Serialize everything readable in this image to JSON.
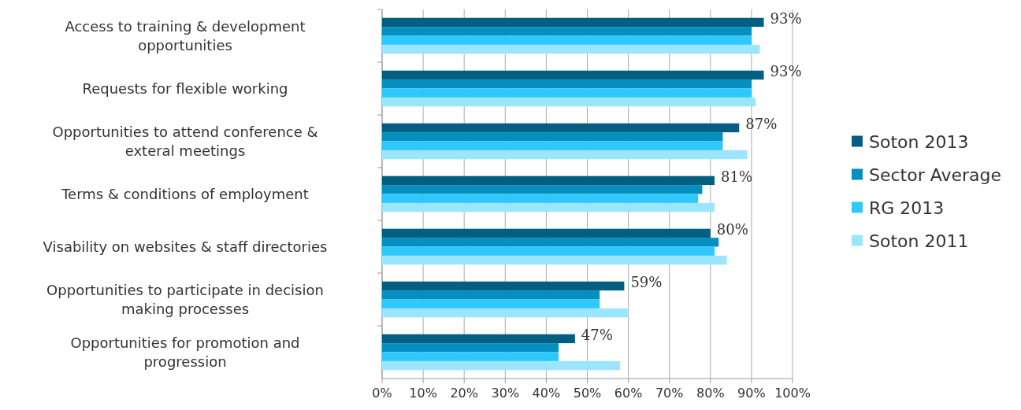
{
  "chart_data": {
    "type": "bar",
    "orientation": "horizontal",
    "categories": [
      "Access to training & development opportunities",
      "Requests for flexible working",
      "Opportunities to attend conference & exteral meetings",
      "Terms & conditions of employment",
      "Visability on websites & staff directories",
      "Opportunities to participate in decision making processes",
      "Opportunities for promotion and progression"
    ],
    "series": [
      {
        "name": "Soton 2013",
        "color": "#035f82",
        "values": [
          93,
          93,
          87,
          81,
          80,
          59,
          47
        ],
        "value_labels": [
          "93%",
          "93%",
          "87%",
          "81%",
          "80%",
          "59%",
          "47%"
        ]
      },
      {
        "name": "Sector Average",
        "color": "#058fc0",
        "values": [
          90,
          90,
          83,
          78,
          82,
          53,
          43
        ]
      },
      {
        "name": "RG 2013",
        "color": "#2fc8fd",
        "values": [
          90,
          90,
          83,
          77,
          81,
          53,
          43
        ]
      },
      {
        "name": "Soton 2011",
        "color": "#9be5fe",
        "values": [
          92,
          91,
          89,
          81,
          84,
          60,
          58
        ]
      }
    ],
    "xlim": [
      0,
      100
    ],
    "xticks": [
      {
        "value": 0,
        "label": "0%"
      },
      {
        "value": 10,
        "label": "10%"
      },
      {
        "value": 20,
        "label": "20%"
      },
      {
        "value": 30,
        "label": "30%"
      },
      {
        "value": 40,
        "label": "40%"
      },
      {
        "value": 50,
        "label": "50%"
      },
      {
        "value": 60,
        "label": "60%"
      },
      {
        "value": 70,
        "label": "70%"
      },
      {
        "value": 80,
        "label": "80%"
      },
      {
        "value": 90,
        "label": "90%"
      },
      {
        "value": 100,
        "label": "100%"
      }
    ],
    "grid": "x",
    "legend": "right"
  }
}
